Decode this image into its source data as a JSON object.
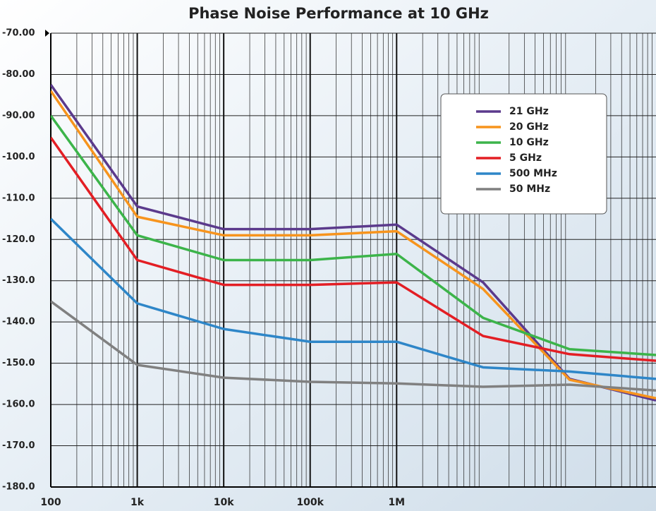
{
  "chart_data": {
    "type": "line",
    "title": "Phase Noise Performance at 10 GHz",
    "x": [
      100,
      1000,
      10000,
      100000,
      1000000,
      10000000,
      100000000,
      1000000000
    ],
    "series": [
      {
        "name": "21 GHz",
        "color": "#5b3a8c",
        "values": [
          -82.5,
          -112,
          -117.5,
          -117.5,
          -116.4,
          -130.4,
          -153.8,
          -159
        ]
      },
      {
        "name": "20 GHz",
        "color": "#f7941d",
        "values": [
          -84,
          -114.5,
          -119,
          -119,
          -118,
          -132,
          -154,
          -158.5
        ]
      },
      {
        "name": "10 GHz",
        "color": "#3cb44a",
        "values": [
          -90,
          -119,
          -125,
          -125,
          -123.5,
          -139,
          -146.6,
          -148
        ]
      },
      {
        "name": "5 GHz",
        "color": "#e31e24",
        "values": [
          -95.3,
          -125,
          -131,
          -131,
          -130.4,
          -143.4,
          -147.8,
          -149.4
        ]
      },
      {
        "name": "500 MHz",
        "color": "#2e86c8",
        "values": [
          -115,
          -135.5,
          -141.7,
          -144.8,
          -144.8,
          -151,
          -152,
          -153.8
        ]
      },
      {
        "name": "50 MHz",
        "color": "#808080",
        "values": [
          -135,
          -150.4,
          -153.5,
          -154.5,
          -154.9,
          -155.7,
          -155.2,
          -156.6
        ]
      }
    ],
    "xlog": true,
    "xlim": [
      100,
      1000000000
    ],
    "xticks": [
      100,
      {
        "value": 1000,
        "label": "1k"
      },
      {
        "value": 10000,
        "label": "10k"
      },
      {
        "value": 100000,
        "label": "100k"
      },
      {
        "value": 1000000,
        "label": "1M"
      }
    ],
    "ylim": [
      -180,
      -70
    ],
    "yticks": [
      {
        "value": -70,
        "label": "-70.00"
      },
      {
        "value": -80,
        "label": "-80.00"
      },
      {
        "value": -90,
        "label": "-90.00"
      },
      {
        "value": -100,
        "label": "-100.0"
      },
      {
        "value": -110,
        "label": "-110.0"
      },
      {
        "value": -120,
        "label": "-120.0"
      },
      {
        "value": -130,
        "label": "-130.0"
      },
      {
        "value": -140,
        "label": "-140.0"
      },
      {
        "value": -150,
        "label": "-150.0"
      },
      {
        "value": -160,
        "label": "-160.0"
      },
      {
        "value": -170,
        "label": "-170.0"
      },
      {
        "value": -180,
        "label": "-180.0"
      }
    ],
    "grid": true,
    "legend": "upper right"
  }
}
